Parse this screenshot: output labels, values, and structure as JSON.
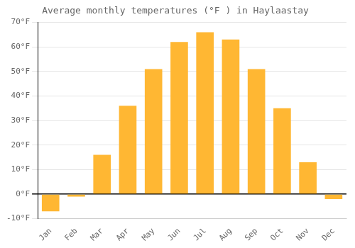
{
  "chart_data": {
    "type": "bar",
    "title": "Average monthly temperatures (°F ) in Haylaastay",
    "categories": [
      "Jan",
      "Feb",
      "Mar",
      "Apr",
      "May",
      "Jun",
      "Jul",
      "Aug",
      "Sep",
      "Oct",
      "Nov",
      "Dec"
    ],
    "values": [
      -7,
      -1,
      16,
      36,
      51,
      62,
      66,
      63,
      51,
      35,
      13,
      -2
    ],
    "color": "#FFB733",
    "ylim": [
      -10,
      70
    ],
    "yticks": [
      {
        "value": -10,
        "label": "-10°F"
      },
      {
        "value": 0,
        "label": "0°F"
      },
      {
        "value": 10,
        "label": "10°F"
      },
      {
        "value": 20,
        "label": "20°F"
      },
      {
        "value": 30,
        "label": "30°F"
      },
      {
        "value": 40,
        "label": "40°F"
      },
      {
        "value": 50,
        "label": "50°F"
      },
      {
        "value": 60,
        "label": "60°F"
      },
      {
        "value": 70,
        "label": "70°F"
      }
    ],
    "grid": true
  }
}
